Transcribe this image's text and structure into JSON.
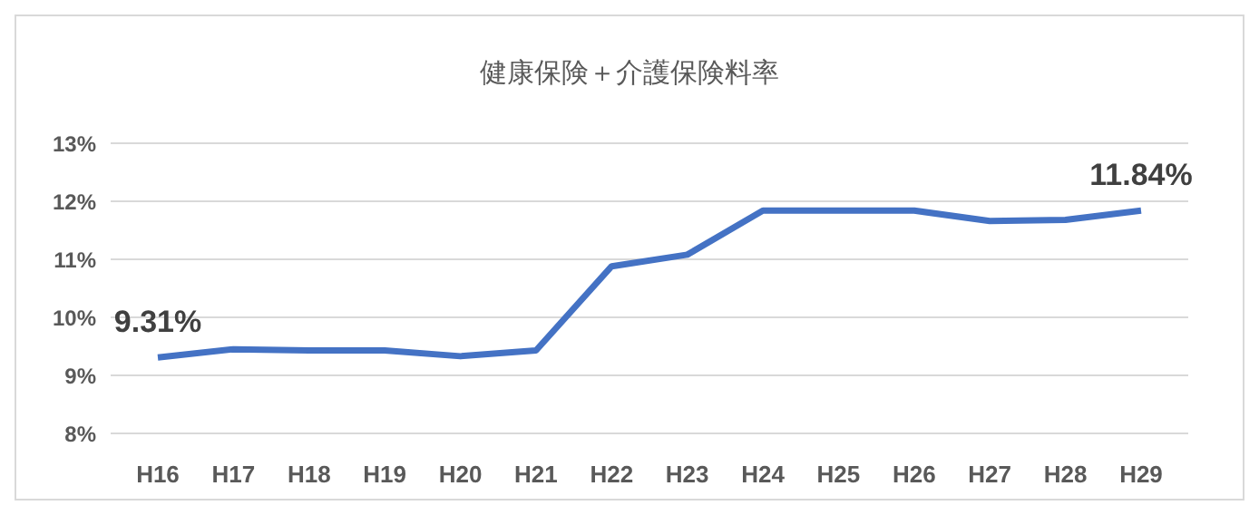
{
  "chart_data": {
    "type": "line",
    "title": "健康保険＋介護保険料率",
    "categories": [
      "H16",
      "H17",
      "H18",
      "H19",
      "H20",
      "H21",
      "H22",
      "H23",
      "H24",
      "H25",
      "H26",
      "H27",
      "H28",
      "H29"
    ],
    "series": [
      {
        "color": "#4472c4",
        "values": [
          9.31,
          9.45,
          9.43,
          9.43,
          9.33,
          9.43,
          10.88,
          11.08,
          11.84,
          11.84,
          11.84,
          11.66,
          11.68,
          11.84
        ],
        "value_labels": [
          "9.31%",
          null,
          null,
          null,
          null,
          null,
          null,
          null,
          null,
          null,
          null,
          null,
          null,
          "11.84%"
        ]
      }
    ],
    "ylim": [
      8,
      13
    ],
    "yticks": [
      {
        "value": 8,
        "label": "8%"
      },
      {
        "value": 9,
        "label": "9%"
      },
      {
        "value": 10,
        "label": "10%"
      },
      {
        "value": 11,
        "label": "11%"
      },
      {
        "value": 12,
        "label": "12%"
      },
      {
        "value": 13,
        "label": "13%"
      }
    ],
    "grid": "y",
    "marker": "none",
    "line_style": "solid",
    "legend": false
  }
}
